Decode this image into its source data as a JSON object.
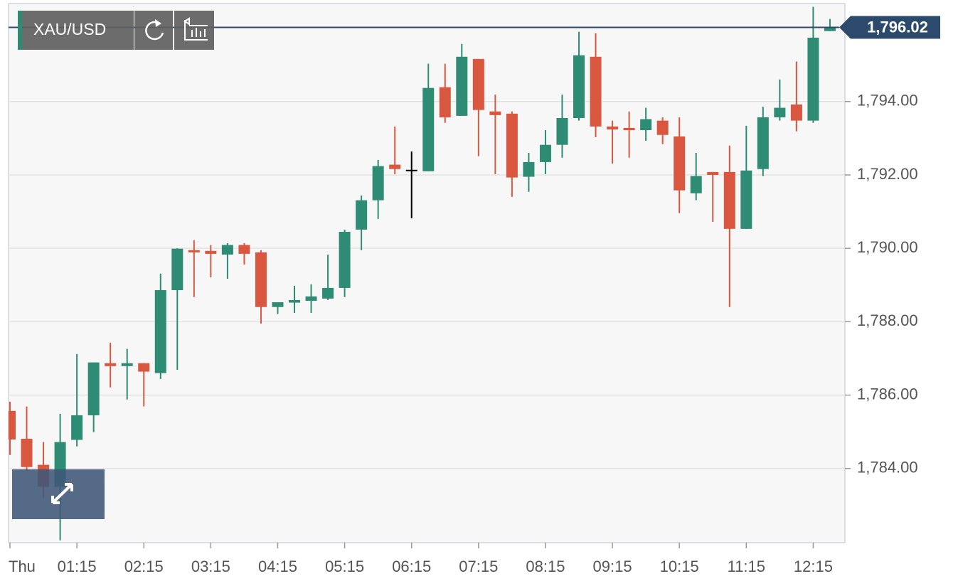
{
  "chart_data": {
    "type": "candlestick",
    "title": "XAU/USD",
    "categories": [
      "Thu",
      null,
      null,
      null,
      "01:15",
      null,
      null,
      null,
      "02:15",
      null,
      null,
      null,
      "03:15",
      null,
      null,
      null,
      "04:15",
      null,
      null,
      null,
      "05:15",
      null,
      null,
      null,
      "06:15",
      null,
      null,
      null,
      "07:15",
      null,
      null,
      null,
      "08:15",
      null,
      null,
      null,
      "09:15",
      null,
      null,
      null,
      "10:15",
      null,
      null,
      null,
      "11:15",
      null,
      null,
      null,
      "12:15",
      null
    ],
    "open": [
      1785.57,
      1784.81,
      1784.1,
      1783.5,
      1784.78,
      1785.45,
      1786.87,
      1786.79,
      1786.87,
      1786.6,
      1788.86,
      1789.95,
      1789.93,
      1789.83,
      1790.09,
      1789.89,
      1788.4,
      1788.52,
      1788.57,
      1788.63,
      1788.92,
      1790.51,
      1791.31,
      1792.28,
      1792.12,
      1792.1,
      1794.39,
      1793.61,
      1795.16,
      1793.73,
      1793.67,
      1791.95,
      1792.35,
      1792.82,
      1793.55,
      1795.22,
      1793.32,
      1793.28,
      1793.22,
      1793.48,
      1793.05,
      1791.5,
      1792.08,
      1792.08,
      1790.53,
      1792.16,
      1793.57,
      1793.92,
      1793.48,
      1795.92
    ],
    "high": [
      1785.82,
      1785.69,
      1784.72,
      1785.49,
      1787.12,
      1786.89,
      1787.43,
      1787.26,
      1786.87,
      1789.31,
      1790.0,
      1790.22,
      1790.09,
      1790.14,
      1790.14,
      1789.95,
      1788.53,
      1788.98,
      1789.02,
      1789.83,
      1790.51,
      1791.44,
      1792.41,
      1793.32,
      1792.64,
      1795.03,
      1795.03,
      1795.57,
      1795.16,
      1794.19,
      1793.73,
      1792.6,
      1793.22,
      1794.19,
      1795.9,
      1795.86,
      1793.48,
      1793.73,
      1793.83,
      1793.57,
      1793.57,
      1792.6,
      1792.08,
      1792.8,
      1793.34,
      1793.86,
      1794.6,
      1795.09,
      1796.58,
      1796.25
    ],
    "low": [
      1784.37,
      1783.94,
      1783.21,
      1782.04,
      1784.6,
      1784.99,
      1786.21,
      1785.88,
      1785.69,
      1786.44,
      1786.69,
      1788.67,
      1789.21,
      1789.17,
      1789.56,
      1787.95,
      1788.21,
      1788.24,
      1788.24,
      1788.59,
      1788.67,
      1789.95,
      1790.8,
      1792.02,
      1790.82,
      1792.1,
      1793.42,
      1793.61,
      1792.51,
      1792.02,
      1791.4,
      1791.54,
      1792.02,
      1792.47,
      1793.48,
      1793.03,
      1792.31,
      1792.47,
      1792.93,
      1792.84,
      1790.96,
      1791.31,
      1790.72,
      1788.4,
      1790.53,
      1791.97,
      1793.48,
      1793.19,
      1793.42,
      1795.92
    ],
    "close": [
      1784.79,
      1784.04,
      1783.5,
      1784.72,
      1785.45,
      1786.89,
      1786.79,
      1786.87,
      1786.64,
      1788.86,
      1789.99,
      1789.89,
      1789.85,
      1790.09,
      1789.85,
      1788.4,
      1788.53,
      1788.59,
      1788.69,
      1788.92,
      1790.45,
      1791.31,
      1792.24,
      1792.16,
      1792.12,
      1794.37,
      1793.57,
      1795.22,
      1793.77,
      1793.63,
      1791.93,
      1792.35,
      1792.82,
      1793.55,
      1795.26,
      1793.32,
      1793.24,
      1793.22,
      1793.52,
      1793.09,
      1791.58,
      1791.97,
      1792.0,
      1790.53,
      1792.12,
      1793.57,
      1793.83,
      1793.48,
      1795.74,
      1796.02
    ],
    "up_color": "#2e8b74",
    "down_color": "#d9573f",
    "flat_color": "#000000",
    "ylim": [
      1781.98,
      1796.67
    ],
    "yticks": [
      {
        "value": 1784,
        "label": "1,784.00"
      },
      {
        "value": 1786,
        "label": "1,786.00"
      },
      {
        "value": 1788,
        "label": "1,788.00"
      },
      {
        "value": 1790,
        "label": "1,790.00"
      },
      {
        "value": 1792,
        "label": "1,792.00"
      },
      {
        "value": 1794,
        "label": "1,794.00"
      }
    ],
    "grid": true,
    "price_line": {
      "value": 1796.02,
      "label": "1,796.02"
    }
  }
}
